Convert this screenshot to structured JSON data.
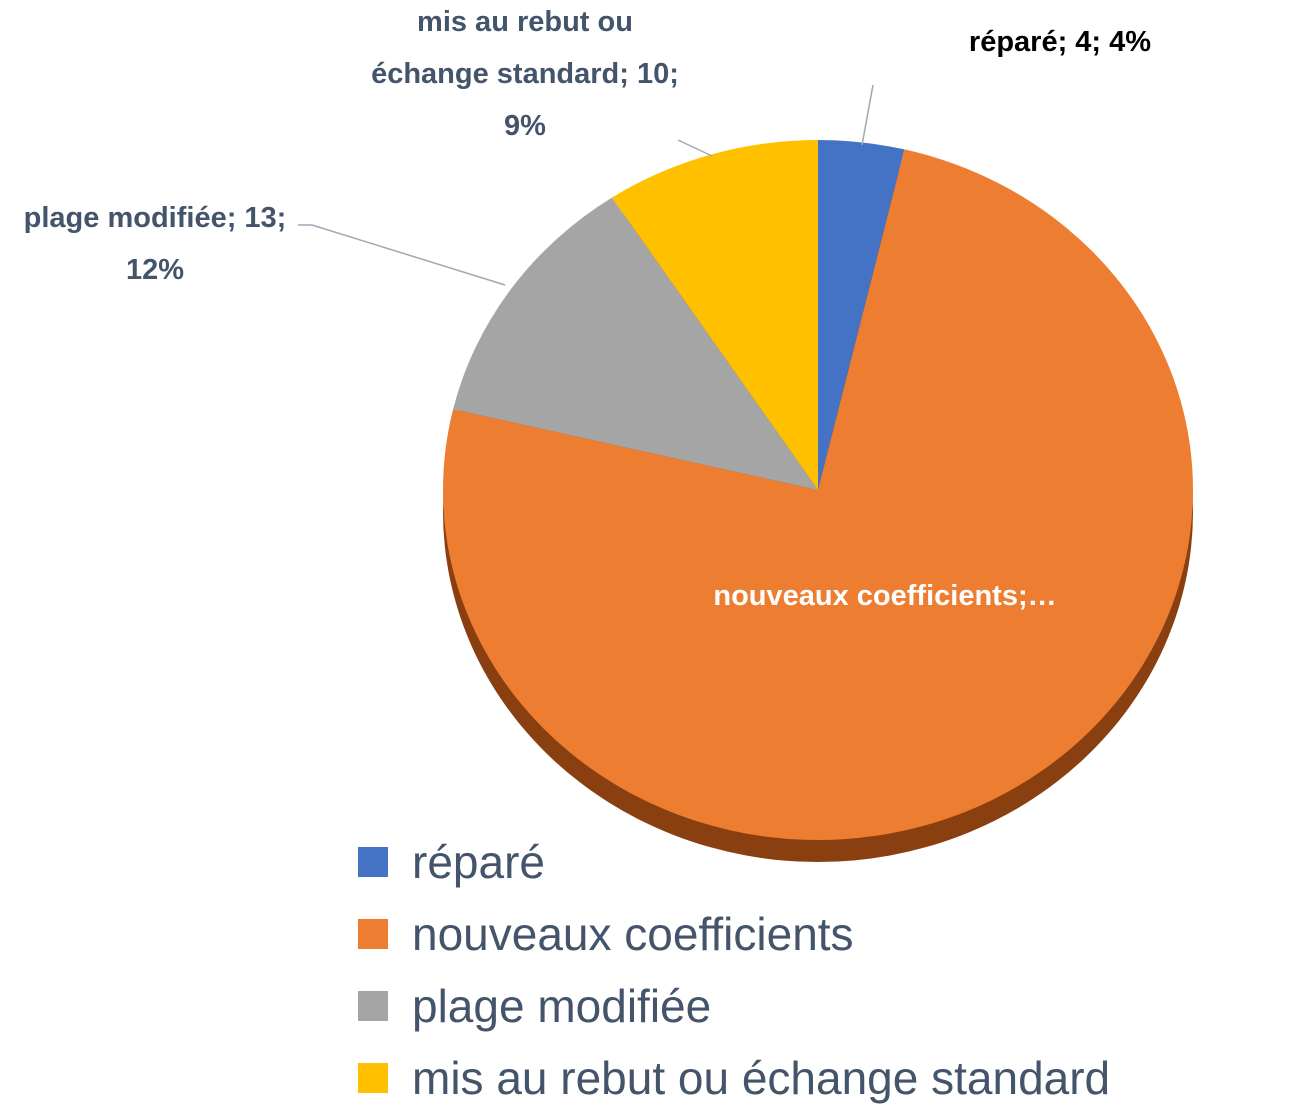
{
  "chart_data": {
    "type": "pie",
    "categories": [
      "réparé",
      "nouveaux coefficients",
      "plage modifiée",
      "mis au rebut ou échange standard"
    ],
    "values": [
      4,
      81,
      13,
      10
    ],
    "value_labels": [
      "réparé; 4; 4%",
      "nouveaux coefficients;…",
      "plage modifiée; 13; 12%",
      "mis au rebut ou échange standard; 10; 9%"
    ],
    "colors": [
      "#4472c4",
      "#ed7d31",
      "#a5a5a5",
      "#ffc000"
    ],
    "legend": "bottom"
  }
}
